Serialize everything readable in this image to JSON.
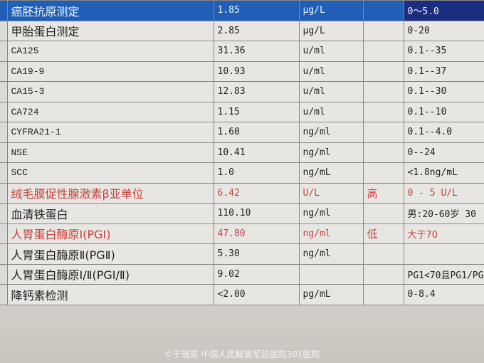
{
  "rows": [
    {
      "name": "癌胚抗原测定",
      "value": "1.85",
      "unit": "μg/L",
      "flag": "",
      "range": "0～5.0",
      "selected": true
    },
    {
      "name": "甲胎蛋白测定",
      "value": "2.85",
      "unit": "μg/L",
      "flag": "",
      "range": "0-20"
    },
    {
      "name": "CA125",
      "value": "31.36",
      "unit": "u/ml",
      "flag": "",
      "range": "0.1--35"
    },
    {
      "name": "CA19-9",
      "value": "10.93",
      "unit": "u/ml",
      "flag": "",
      "range": "0.1--37"
    },
    {
      "name": "CA15-3",
      "value": "12.83",
      "unit": "u/ml",
      "flag": "",
      "range": "0.1--30"
    },
    {
      "name": "CA724",
      "value": "1.15",
      "unit": "u/ml",
      "flag": "",
      "range": "0.1--10"
    },
    {
      "name": "CYFRA21-1",
      "value": "1.60",
      "unit": "ng/ml",
      "flag": "",
      "range": "0.1--4.0"
    },
    {
      "name": "NSE",
      "value": "10.41",
      "unit": "ng/ml",
      "flag": "",
      "range": "0--24"
    },
    {
      "name": "SCC",
      "value": "1.0",
      "unit": "ng/mL",
      "flag": "",
      "range": "<1.8ng/mL"
    },
    {
      "name": "绒毛膜促性腺激素β亚单位",
      "value": "6.42",
      "unit": "U/L",
      "flag": "高",
      "range": "0 - 5 U/L",
      "abnormal": true
    },
    {
      "name": "血清铁蛋白",
      "value": "110.10",
      "unit": "ng/ml",
      "flag": "",
      "range": "男:20-60岁 30"
    },
    {
      "name": "人胃蛋白酶原Ⅰ(PGⅠ)",
      "value": "47.80",
      "unit": "ng/ml",
      "flag": "低",
      "range": "大于70",
      "abnormal": true
    },
    {
      "name": "人胃蛋白酶原Ⅱ(PGⅡ)",
      "value": "5.30",
      "unit": "ng/ml",
      "flag": "",
      "range": ""
    },
    {
      "name": "人胃蛋白酶原Ⅰ/Ⅱ(PGⅠ/Ⅱ)",
      "value": "9.02",
      "unit": "",
      "flag": "",
      "range": "PG1<70且PG1/PG"
    },
    {
      "name": "降钙素检测",
      "value": "<2.00",
      "unit": "pg/mL",
      "flag": "",
      "range": "0-8.4"
    }
  ],
  "watermark": "©于瑞双 中国人民解放军总医院301医院",
  "colors": {
    "selected_row": "#1f5fb8",
    "abnormal_text": "#c7423c"
  }
}
